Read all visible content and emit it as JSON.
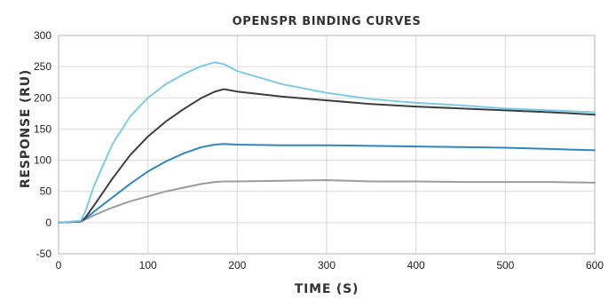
{
  "chart_data": {
    "type": "line",
    "title": "OPENSPR BINDING CURVES",
    "xlabel": "TIME (S)",
    "ylabel": "RESPONSE (RU)",
    "xlim": [
      0,
      600
    ],
    "ylim": [
      -50,
      300
    ],
    "x_ticks": [
      0,
      100,
      200,
      300,
      400,
      500,
      600
    ],
    "y_ticks": [
      -50,
      0,
      50,
      100,
      150,
      200,
      250,
      300
    ],
    "grid": true,
    "legend": "none",
    "series": [
      {
        "color": "#7ccbe6",
        "x": [
          0,
          25,
          30,
          40,
          60,
          80,
          100,
          120,
          140,
          160,
          175,
          185,
          200,
          250,
          300,
          350,
          400,
          450,
          500,
          550,
          600
        ],
        "y": [
          0,
          3,
          18,
          60,
          125,
          170,
          200,
          222,
          238,
          251,
          257,
          254,
          243,
          222,
          208,
          198,
          192,
          188,
          183,
          180,
          177
        ]
      },
      {
        "color": "#3a3e44",
        "x": [
          0,
          25,
          30,
          40,
          60,
          80,
          100,
          120,
          140,
          160,
          175,
          185,
          200,
          250,
          300,
          350,
          400,
          450,
          500,
          550,
          600
        ],
        "y": [
          0,
          2,
          8,
          28,
          70,
          108,
          138,
          162,
          182,
          200,
          210,
          214,
          210,
          202,
          196,
          190,
          186,
          183,
          180,
          177,
          173
        ]
      },
      {
        "color": "#2f86c0",
        "x": [
          0,
          25,
          30,
          40,
          60,
          80,
          100,
          120,
          140,
          160,
          175,
          185,
          200,
          250,
          300,
          350,
          400,
          450,
          500,
          550,
          600
        ],
        "y": [
          0,
          2,
          6,
          18,
          40,
          62,
          82,
          98,
          111,
          121,
          125,
          126,
          125,
          124,
          124,
          123,
          122,
          121,
          120,
          118,
          116
        ]
      },
      {
        "color": "#9a9c9e",
        "x": [
          0,
          25,
          30,
          40,
          60,
          80,
          100,
          120,
          140,
          160,
          175,
          185,
          200,
          250,
          300,
          350,
          400,
          450,
          500,
          550,
          600
        ],
        "y": [
          0,
          2,
          5,
          12,
          24,
          34,
          42,
          50,
          56,
          62,
          65,
          66,
          66,
          67,
          68,
          66,
          66,
          65,
          65,
          65,
          64
        ]
      }
    ]
  }
}
